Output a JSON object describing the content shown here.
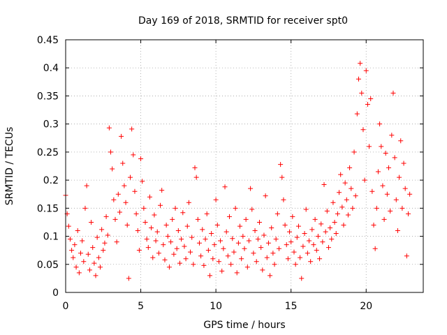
{
  "chart_data": {
    "type": "scatter",
    "title": "Day 169 of 2018, SRMTID for receiver spt0",
    "xlabel": "GPS time / hours",
    "ylabel": "SRMTID / TECUs",
    "xlim": [
      0,
      23.8
    ],
    "ylim": [
      0,
      0.45
    ],
    "x_ticks": [
      0,
      5,
      10,
      15,
      20
    ],
    "x_tick_labels": [
      "0",
      "5",
      "10",
      "15",
      "20"
    ],
    "y_ticks": [
      0,
      0.05,
      0.1,
      0.15,
      0.2,
      0.25,
      0.3,
      0.35,
      0.4,
      0.45
    ],
    "y_tick_labels": [
      "0",
      "0.05",
      "0.1",
      "0.15",
      "0.2",
      "0.25",
      "0.3",
      "0.35",
      "0.4",
      "0.45"
    ],
    "grid": true,
    "legend": "none",
    "marker": "+",
    "series": [
      {
        "color": "#ff0000",
        "points": [
          [
            0.0,
            0.173
          ],
          [
            0.1,
            0.14
          ],
          [
            0.2,
            0.118
          ],
          [
            0.3,
            0.095
          ],
          [
            0.4,
            0.075
          ],
          [
            0.5,
            0.062
          ],
          [
            0.6,
            0.085
          ],
          [
            0.7,
            0.045
          ],
          [
            0.8,
            0.11
          ],
          [
            0.9,
            0.035
          ],
          [
            1.0,
            0.07
          ],
          [
            1.1,
            0.092
          ],
          [
            1.2,
            0.055
          ],
          [
            1.3,
            0.15
          ],
          [
            1.4,
            0.19
          ],
          [
            1.5,
            0.068
          ],
          [
            1.6,
            0.04
          ],
          [
            1.7,
            0.125
          ],
          [
            1.8,
            0.08
          ],
          [
            1.9,
            0.052
          ],
          [
            2.0,
            0.03
          ],
          [
            2.1,
            0.098
          ],
          [
            2.2,
            0.062
          ],
          [
            2.3,
            0.045
          ],
          [
            2.4,
            0.112
          ],
          [
            2.5,
            0.075
          ],
          [
            2.6,
            0.088
          ],
          [
            2.7,
            0.135
          ],
          [
            2.8,
            0.102
          ],
          [
            2.9,
            0.293
          ],
          [
            3.0,
            0.25
          ],
          [
            3.1,
            0.22
          ],
          [
            3.2,
            0.165
          ],
          [
            3.3,
            0.13
          ],
          [
            3.4,
            0.09
          ],
          [
            3.5,
            0.175
          ],
          [
            3.6,
            0.143
          ],
          [
            3.7,
            0.278
          ],
          [
            3.8,
            0.23
          ],
          [
            3.9,
            0.19
          ],
          [
            4.0,
            0.16
          ],
          [
            4.1,
            0.12
          ],
          [
            4.2,
            0.025
          ],
          [
            4.3,
            0.205
          ],
          [
            4.4,
            0.291
          ],
          [
            4.5,
            0.245
          ],
          [
            4.6,
            0.18
          ],
          [
            4.7,
            0.14
          ],
          [
            4.8,
            0.11
          ],
          [
            4.9,
            0.075
          ],
          [
            5.0,
            0.238
          ],
          [
            5.1,
            0.198
          ],
          [
            5.2,
            0.15
          ],
          [
            5.3,
            0.125
          ],
          [
            5.4,
            0.095
          ],
          [
            5.5,
            0.08
          ],
          [
            5.6,
            0.17
          ],
          [
            5.7,
            0.115
          ],
          [
            5.8,
            0.062
          ],
          [
            5.9,
            0.138
          ],
          [
            6.0,
            0.092
          ],
          [
            6.1,
            0.108
          ],
          [
            6.2,
            0.07
          ],
          [
            6.3,
            0.155
          ],
          [
            6.4,
            0.182
          ],
          [
            6.5,
            0.085
          ],
          [
            6.6,
            0.058
          ],
          [
            6.7,
            0.12
          ],
          [
            6.8,
            0.1
          ],
          [
            6.9,
            0.045
          ],
          [
            7.0,
            0.09
          ],
          [
            7.1,
            0.13
          ],
          [
            7.2,
            0.068
          ],
          [
            7.3,
            0.15
          ],
          [
            7.4,
            0.078
          ],
          [
            7.5,
            0.11
          ],
          [
            7.6,
            0.052
          ],
          [
            7.7,
            0.095
          ],
          [
            7.8,
            0.142
          ],
          [
            7.9,
            0.082
          ],
          [
            8.0,
            0.06
          ],
          [
            8.1,
            0.118
          ],
          [
            8.2,
            0.16
          ],
          [
            8.3,
            0.072
          ],
          [
            8.4,
            0.098
          ],
          [
            8.5,
            0.05
          ],
          [
            8.6,
            0.222
          ],
          [
            8.7,
            0.205
          ],
          [
            8.8,
            0.13
          ],
          [
            8.9,
            0.088
          ],
          [
            9.0,
            0.065
          ],
          [
            9.1,
            0.112
          ],
          [
            9.2,
            0.048
          ],
          [
            9.3,
            0.095
          ],
          [
            9.4,
            0.14
          ],
          [
            9.5,
            0.075
          ],
          [
            9.6,
            0.03
          ],
          [
            9.7,
            0.105
          ],
          [
            9.8,
            0.06
          ],
          [
            9.9,
            0.085
          ],
          [
            10.0,
            0.165
          ],
          [
            10.1,
            0.12
          ],
          [
            10.2,
            0.055
          ],
          [
            10.3,
            0.092
          ],
          [
            10.4,
            0.038
          ],
          [
            10.5,
            0.078
          ],
          [
            10.6,
            0.188
          ],
          [
            10.7,
            0.108
          ],
          [
            10.8,
            0.065
          ],
          [
            10.9,
            0.135
          ],
          [
            11.0,
            0.05
          ],
          [
            11.1,
            0.096
          ],
          [
            11.2,
            0.072
          ],
          [
            11.3,
            0.15
          ],
          [
            11.4,
            0.035
          ],
          [
            11.5,
            0.088
          ],
          [
            11.6,
            0.118
          ],
          [
            11.7,
            0.06
          ],
          [
            11.8,
            0.1
          ],
          [
            11.9,
            0.078
          ],
          [
            12.0,
            0.13
          ],
          [
            12.1,
            0.045
          ],
          [
            12.2,
            0.092
          ],
          [
            12.3,
            0.185
          ],
          [
            12.4,
            0.148
          ],
          [
            12.5,
            0.07
          ],
          [
            12.6,
            0.11
          ],
          [
            12.7,
            0.055
          ],
          [
            12.8,
            0.095
          ],
          [
            12.9,
            0.125
          ],
          [
            13.0,
            0.08
          ],
          [
            13.1,
            0.04
          ],
          [
            13.2,
            0.102
          ],
          [
            13.3,
            0.172
          ],
          [
            13.4,
            0.062
          ],
          [
            13.5,
            0.088
          ],
          [
            13.6,
            0.03
          ],
          [
            13.7,
            0.115
          ],
          [
            13.8,
            0.07
          ],
          [
            13.9,
            0.05
          ],
          [
            14.0,
            0.095
          ],
          [
            14.1,
            0.14
          ],
          [
            14.2,
            0.078
          ],
          [
            14.3,
            0.228
          ],
          [
            14.4,
            0.205
          ],
          [
            14.5,
            0.165
          ],
          [
            14.6,
            0.12
          ],
          [
            14.7,
            0.085
          ],
          [
            14.8,
            0.06
          ],
          [
            14.9,
            0.108
          ],
          [
            15.0,
            0.09
          ],
          [
            15.1,
            0.135
          ],
          [
            15.2,
            0.072
          ],
          [
            15.3,
            0.05
          ],
          [
            15.4,
            0.098
          ],
          [
            15.5,
            0.118
          ],
          [
            15.6,
            0.062
          ],
          [
            15.7,
            0.025
          ],
          [
            15.8,
            0.082
          ],
          [
            15.9,
            0.105
          ],
          [
            16.0,
            0.148
          ],
          [
            16.1,
            0.07
          ],
          [
            16.2,
            0.092
          ],
          [
            16.3,
            0.055
          ],
          [
            16.4,
            0.112
          ],
          [
            16.5,
            0.085
          ],
          [
            16.6,
            0.13
          ],
          [
            16.7,
            0.075
          ],
          [
            16.8,
            0.1
          ],
          [
            16.9,
            0.06
          ],
          [
            17.0,
            0.122
          ],
          [
            17.1,
            0.09
          ],
          [
            17.2,
            0.192
          ],
          [
            17.3,
            0.108
          ],
          [
            17.4,
            0.145
          ],
          [
            17.5,
            0.08
          ],
          [
            17.6,
            0.115
          ],
          [
            17.7,
            0.095
          ],
          [
            17.8,
            0.16
          ],
          [
            17.9,
            0.125
          ],
          [
            18.0,
            0.105
          ],
          [
            18.1,
            0.14
          ],
          [
            18.2,
            0.178
          ],
          [
            18.3,
            0.21
          ],
          [
            18.4,
            0.152
          ],
          [
            18.5,
            0.12
          ],
          [
            18.6,
            0.195
          ],
          [
            18.7,
            0.165
          ],
          [
            18.8,
            0.138
          ],
          [
            18.9,
            0.222
          ],
          [
            19.0,
            0.185
          ],
          [
            19.1,
            0.15
          ],
          [
            19.2,
            0.25
          ],
          [
            19.3,
            0.172
          ],
          [
            19.4,
            0.318
          ],
          [
            19.5,
            0.38
          ],
          [
            19.6,
            0.408
          ],
          [
            19.7,
            0.355
          ],
          [
            19.8,
            0.29
          ],
          [
            19.9,
            0.2
          ],
          [
            20.0,
            0.395
          ],
          [
            20.1,
            0.335
          ],
          [
            20.2,
            0.26
          ],
          [
            20.3,
            0.345
          ],
          [
            20.4,
            0.18
          ],
          [
            20.5,
            0.12
          ],
          [
            20.6,
            0.078
          ],
          [
            20.7,
            0.15
          ],
          [
            20.8,
            0.215
          ],
          [
            20.9,
            0.3
          ],
          [
            21.0,
            0.26
          ],
          [
            21.1,
            0.19
          ],
          [
            21.2,
            0.13
          ],
          [
            21.3,
            0.248
          ],
          [
            21.4,
            0.175
          ],
          [
            21.5,
            0.222
          ],
          [
            21.6,
            0.145
          ],
          [
            21.7,
            0.28
          ],
          [
            21.8,
            0.355
          ],
          [
            21.9,
            0.24
          ],
          [
            22.0,
            0.165
          ],
          [
            22.1,
            0.11
          ],
          [
            22.2,
            0.205
          ],
          [
            22.3,
            0.27
          ],
          [
            22.4,
            0.15
          ],
          [
            22.5,
            0.23
          ],
          [
            22.6,
            0.185
          ],
          [
            22.7,
            0.065
          ],
          [
            22.8,
            0.14
          ],
          [
            22.9,
            0.175
          ]
        ]
      }
    ]
  }
}
